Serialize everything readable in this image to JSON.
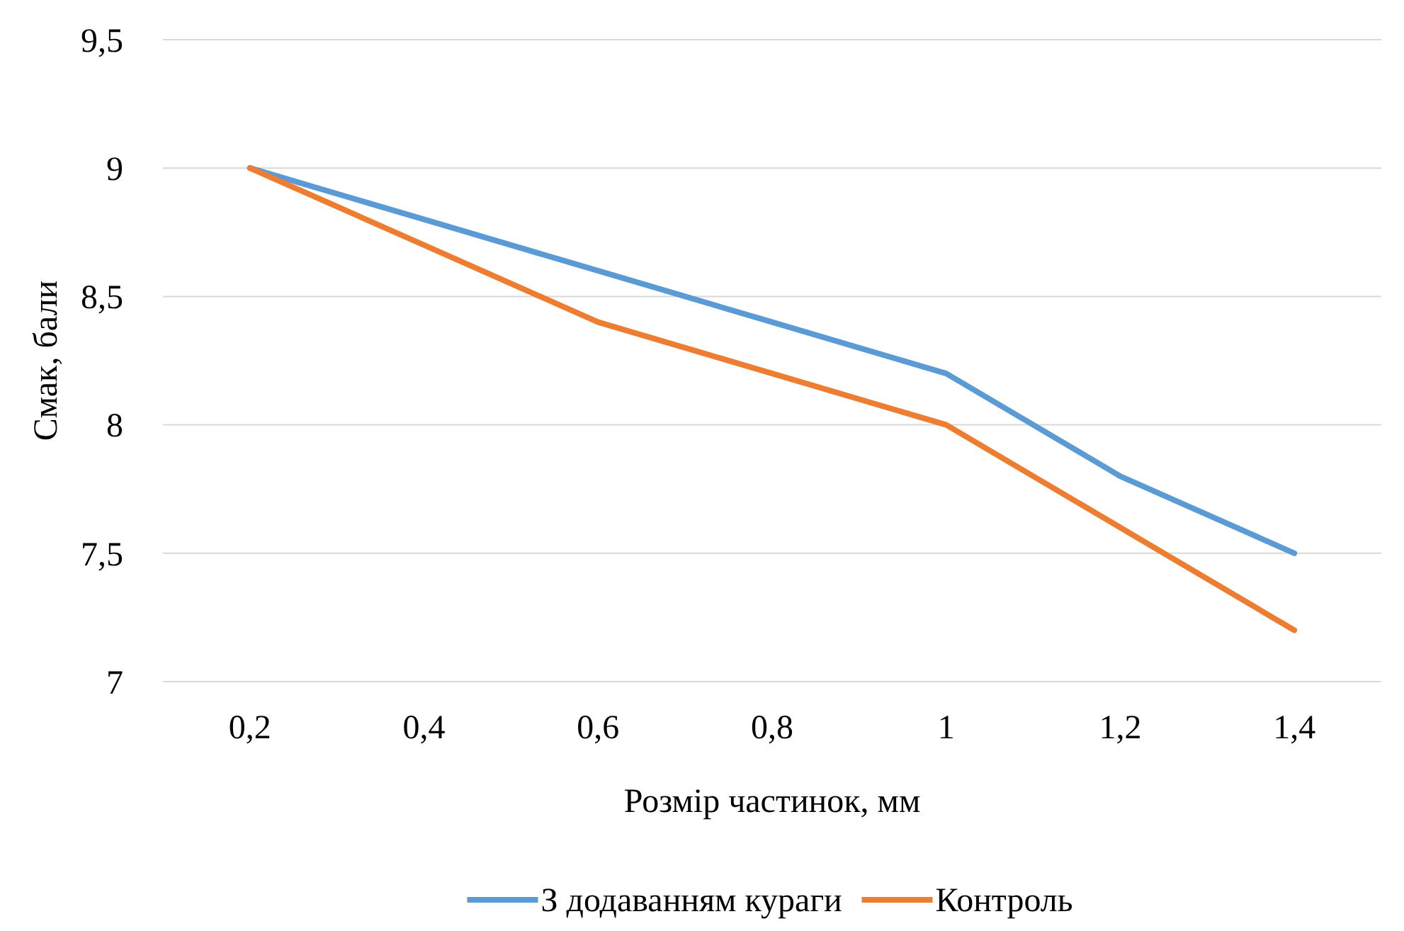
{
  "chart_data": {
    "type": "line",
    "xlabel": "Розмір частинок, мм",
    "ylabel": "Смак, бали",
    "categories": [
      "0,2",
      "0,4",
      "0,6",
      "0,8",
      "1",
      "1,2",
      "1,4"
    ],
    "series": [
      {
        "name": "З додаванням кураги",
        "color": "#5b9bd5",
        "values": [
          9,
          8.8,
          8.6,
          8.4,
          8.2,
          7.8,
          7.5
        ]
      },
      {
        "name": "Контроль",
        "color": "#ed7d31",
        "values": [
          9,
          8.7,
          8.4,
          8.2,
          8.0,
          7.6,
          7.2
        ]
      }
    ],
    "ylim": [
      7,
      9.5
    ],
    "yticks": [
      7,
      {
        "value": 7.5,
        "label": "7,5"
      },
      8,
      {
        "value": 8.5,
        "label": "8,5"
      },
      9,
      {
        "value": 9.5,
        "label": "9,5"
      }
    ],
    "grid": "y",
    "legend": "bottom",
    "marker": "none",
    "line_style": "solid"
  }
}
